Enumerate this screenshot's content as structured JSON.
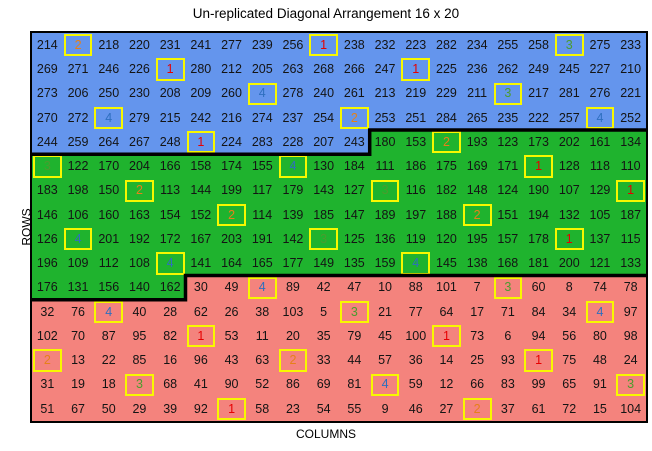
{
  "chart_data": {
    "type": "heatmap",
    "title": "Un-replicated Diagonal Arrangement 16 x 20",
    "xlabel": "COLUMNS",
    "ylabel": "ROWS",
    "rows": 16,
    "cols": 20,
    "cell_values": [
      [
        214,
        2,
        218,
        220,
        231,
        241,
        277,
        239,
        256,
        1,
        238,
        232,
        223,
        282,
        234,
        255,
        258,
        3,
        275,
        233
      ],
      [
        269,
        271,
        246,
        226,
        1,
        280,
        212,
        205,
        263,
        268,
        266,
        247,
        1,
        225,
        236,
        262,
        249,
        245,
        227,
        210
      ],
      [
        273,
        206,
        250,
        230,
        208,
        209,
        260,
        4,
        278,
        240,
        261,
        213,
        219,
        229,
        211,
        3,
        217,
        281,
        276,
        221
      ],
      [
        270,
        272,
        4,
        279,
        215,
        242,
        216,
        274,
        237,
        254,
        2,
        253,
        251,
        284,
        265,
        235,
        222,
        257,
        4,
        252
      ],
      [
        244,
        259,
        264,
        267,
        248,
        1,
        224,
        283,
        228,
        207,
        243,
        180,
        153,
        2,
        193,
        123,
        173,
        202,
        161,
        134
      ],
      [
        3,
        122,
        170,
        204,
        166,
        158,
        174,
        155,
        4,
        130,
        184,
        111,
        186,
        175,
        169,
        171,
        1,
        128,
        118,
        110
      ],
      [
        183,
        198,
        150,
        2,
        113,
        144,
        199,
        117,
        179,
        143,
        127,
        3,
        116,
        182,
        148,
        124,
        190,
        107,
        129,
        1
      ],
      [
        146,
        106,
        160,
        163,
        154,
        152,
        2,
        114,
        139,
        185,
        147,
        189,
        197,
        188,
        2,
        151,
        194,
        132,
        105,
        187
      ],
      [
        126,
        4,
        201,
        192,
        172,
        167,
        203,
        191,
        142,
        3,
        125,
        136,
        119,
        120,
        195,
        157,
        178,
        1,
        137,
        115
      ],
      [
        196,
        109,
        112,
        108,
        4,
        141,
        164,
        165,
        177,
        149,
        135,
        159,
        4,
        145,
        138,
        168,
        181,
        200,
        121,
        133
      ],
      [
        176,
        131,
        156,
        140,
        162,
        30,
        49,
        4,
        89,
        42,
        47,
        10,
        88,
        101,
        7,
        3,
        60,
        8,
        74,
        78
      ],
      [
        32,
        76,
        4,
        40,
        28,
        62,
        26,
        38,
        103,
        5,
        3,
        21,
        77,
        64,
        17,
        71,
        84,
        34,
        4,
        97
      ],
      [
        102,
        70,
        87,
        95,
        82,
        1,
        53,
        11,
        20,
        35,
        79,
        45,
        100,
        1,
        73,
        6,
        94,
        56,
        80,
        98
      ],
      [
        2,
        13,
        22,
        85,
        16,
        96,
        43,
        63,
        2,
        33,
        44,
        57,
        36,
        14,
        25,
        93,
        1,
        75,
        48,
        24
      ],
      [
        31,
        19,
        18,
        3,
        68,
        41,
        90,
        52,
        86,
        69,
        81,
        4,
        59,
        12,
        66,
        83,
        99,
        65,
        91,
        3
      ],
      [
        51,
        67,
        50,
        29,
        39,
        92,
        1,
        58,
        23,
        54,
        55,
        9,
        46,
        27,
        2,
        37,
        61,
        72,
        15,
        104
      ]
    ],
    "check_positions": [
      [
        1,
        2
      ],
      [
        1,
        10
      ],
      [
        1,
        18
      ],
      [
        2,
        5
      ],
      [
        2,
        13
      ],
      [
        3,
        8
      ],
      [
        3,
        16
      ],
      [
        4,
        3
      ],
      [
        4,
        11
      ],
      [
        4,
        19
      ],
      [
        5,
        6
      ],
      [
        5,
        14
      ],
      [
        6,
        1
      ],
      [
        6,
        9
      ],
      [
        6,
        17
      ],
      [
        7,
        4
      ],
      [
        7,
        12
      ],
      [
        7,
        20
      ],
      [
        8,
        7
      ],
      [
        8,
        15
      ],
      [
        9,
        2
      ],
      [
        9,
        10
      ],
      [
        9,
        18
      ],
      [
        10,
        5
      ],
      [
        10,
        13
      ],
      [
        11,
        8
      ],
      [
        11,
        16
      ],
      [
        12,
        3
      ],
      [
        12,
        11
      ],
      [
        12,
        19
      ],
      [
        13,
        6
      ],
      [
        13,
        14
      ],
      [
        14,
        1
      ],
      [
        14,
        9
      ],
      [
        14,
        17
      ],
      [
        15,
        4
      ],
      [
        15,
        12
      ],
      [
        15,
        20
      ],
      [
        16,
        7
      ],
      [
        16,
        15
      ]
    ],
    "region_rows": [
      [
        [
          "B",
          20
        ]
      ],
      [
        [
          "B",
          20
        ]
      ],
      [
        [
          "B",
          20
        ]
      ],
      [
        [
          "B",
          20
        ]
      ],
      [
        [
          "B",
          11
        ],
        [
          "G",
          9
        ]
      ],
      [
        [
          "G",
          20
        ]
      ],
      [
        [
          "G",
          20
        ]
      ],
      [
        [
          "G",
          20
        ]
      ],
      [
        [
          "G",
          20
        ]
      ],
      [
        [
          "G",
          20
        ]
      ],
      [
        [
          "G",
          5
        ],
        [
          "R",
          15
        ]
      ],
      [
        [
          "R",
          20
        ]
      ],
      [
        [
          "R",
          20
        ]
      ],
      [
        [
          "R",
          20
        ]
      ],
      [
        [
          "R",
          20
        ]
      ],
      [
        [
          "R",
          20
        ]
      ]
    ],
    "region_colors": {
      "B": "#6495ED",
      "G": "#1FB32E",
      "R": "#F4837D"
    },
    "check_colors": {
      "1": "#E60000",
      "2": "#E68019",
      "3": "#4B9C2E",
      "4": "#2E6FBF"
    },
    "check_box_border": "#F8F800",
    "boundaries": [
      "20,4 11,4 11,5 0,5",
      "20,10 5,10 5,11 0,11"
    ],
    "grid_on": false,
    "legend": "none"
  }
}
